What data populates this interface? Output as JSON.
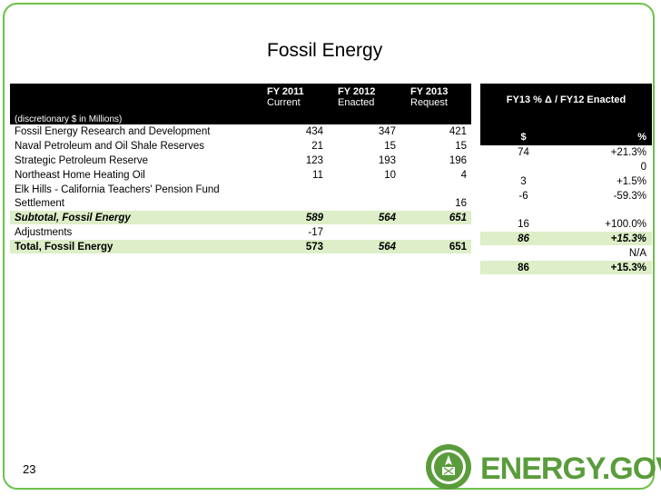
{
  "slide": {
    "title": "Fossil Energy",
    "page_number": "23",
    "logo_text": "ENERGY.GOV"
  },
  "table": {
    "columns": [
      {
        "line1": "FY 2011",
        "line2": "Current"
      },
      {
        "line1": "FY 2012",
        "line2": "Enacted"
      },
      {
        "line1": "FY 2013",
        "line2": "Request"
      }
    ],
    "unit_label": "(discretionary $ in Millions)",
    "change_header": "FY13 % Δ / FY12 Enacted",
    "change_dollar": "$",
    "change_percent": "%",
    "rows": [
      {
        "label": "Fossil Energy Research and Development",
        "fy11": "434",
        "fy12": "347",
        "fy13": "421",
        "d": "74",
        "p": "+21.3%"
      },
      {
        "label": "Naval Petroleum and Oil Shale Reserves",
        "fy11": "21",
        "fy12": "15",
        "fy13": "15",
        "d": "",
        "p": "0"
      },
      {
        "label": "Strategic Petroleum Reserve",
        "fy11": "123",
        "fy12": "193",
        "fy13": "196",
        "d": "3",
        "p": "+1.5%"
      },
      {
        "label": "Northeast Home Heating Oil",
        "fy11": "11",
        "fy12": "10",
        "fy13": "4",
        "d": "-6",
        "p": "-59.3%"
      },
      {
        "label_line1": "Elk Hills - California Teachers' Pension Fund",
        "label_line2": "Settlement",
        "fy11": "",
        "fy12": "",
        "fy13": "16",
        "d": "16",
        "p": "+100.0%"
      }
    ],
    "subtotal": {
      "label": "Subtotal, Fossil Energy",
      "fy11": "589",
      "fy12": "564",
      "fy13": "651",
      "d": "86",
      "p": "+15.3%"
    },
    "adjustments": {
      "label": "Adjustments",
      "fy11": "-17",
      "fy12": "",
      "fy13": "",
      "d": "",
      "p": "N/A"
    },
    "total": {
      "label": "Total, Fossil Energy",
      "fy11": "573",
      "fy12": "564",
      "fy13": "651",
      "d": "86",
      "p": "+15.3%"
    }
  },
  "colors": {
    "frame": "#6cc24a",
    "highlight_row": "#ddeec8",
    "header_bg": "#000000",
    "logo": "#5a9c3b"
  }
}
